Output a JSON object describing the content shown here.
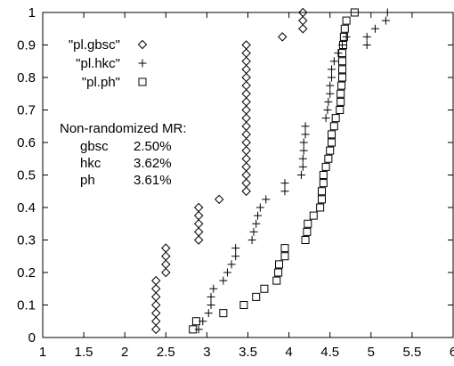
{
  "chart_data": {
    "type": "scatter",
    "title": "",
    "xlabel": "",
    "ylabel": "",
    "xlim": [
      1,
      6
    ],
    "ylim": [
      0,
      1
    ],
    "x_ticks": [
      1,
      1.5,
      2,
      2.5,
      3,
      3.5,
      4,
      4.5,
      5,
      5.5,
      6
    ],
    "x_tick_labels": [
      "1",
      "1.5",
      "2",
      "2.5",
      "3",
      "3.5",
      "4",
      "4.5",
      "5",
      "5.5",
      "6"
    ],
    "y_ticks": [
      0,
      0.1,
      0.2,
      0.3,
      0.4,
      0.5,
      0.6,
      0.7,
      0.8,
      0.9,
      1
    ],
    "y_tick_labels": [
      "0",
      "0.1",
      "0.2",
      "0.3",
      "0.4",
      "0.5",
      "0.6",
      "0.7",
      "0.8",
      "0.9",
      "1"
    ],
    "grid": false,
    "legend_position": "top-left",
    "series": [
      {
        "name": "\"pl.gbsc\"",
        "marker": "diamond",
        "points": [
          [
            2.38,
            0.025
          ],
          [
            2.38,
            0.05
          ],
          [
            2.38,
            0.075
          ],
          [
            2.38,
            0.1
          ],
          [
            2.38,
            0.125
          ],
          [
            2.38,
            0.15
          ],
          [
            2.38,
            0.175
          ],
          [
            2.5,
            0.2
          ],
          [
            2.5,
            0.225
          ],
          [
            2.5,
            0.25
          ],
          [
            2.5,
            0.275
          ],
          [
            2.9,
            0.3
          ],
          [
            2.9,
            0.325
          ],
          [
            2.9,
            0.35
          ],
          [
            2.9,
            0.375
          ],
          [
            2.9,
            0.4
          ],
          [
            3.15,
            0.425
          ],
          [
            3.48,
            0.45
          ],
          [
            3.48,
            0.475
          ],
          [
            3.48,
            0.5
          ],
          [
            3.48,
            0.525
          ],
          [
            3.48,
            0.55
          ],
          [
            3.48,
            0.575
          ],
          [
            3.48,
            0.6
          ],
          [
            3.48,
            0.625
          ],
          [
            3.48,
            0.65
          ],
          [
            3.48,
            0.675
          ],
          [
            3.48,
            0.7
          ],
          [
            3.48,
            0.725
          ],
          [
            3.48,
            0.75
          ],
          [
            3.48,
            0.775
          ],
          [
            3.48,
            0.8
          ],
          [
            3.48,
            0.825
          ],
          [
            3.48,
            0.85
          ],
          [
            3.48,
            0.875
          ],
          [
            3.48,
            0.9
          ],
          [
            3.92,
            0.925
          ],
          [
            4.17,
            0.95
          ],
          [
            4.17,
            0.975
          ],
          [
            4.17,
            1.0
          ]
        ]
      },
      {
        "name": "\"pl.hkc\"",
        "marker": "plus",
        "points": [
          [
            2.9,
            0.025
          ],
          [
            2.95,
            0.05
          ],
          [
            3.02,
            0.075
          ],
          [
            3.05,
            0.1
          ],
          [
            3.05,
            0.125
          ],
          [
            3.08,
            0.15
          ],
          [
            3.2,
            0.175
          ],
          [
            3.25,
            0.2
          ],
          [
            3.3,
            0.225
          ],
          [
            3.35,
            0.25
          ],
          [
            3.35,
            0.275
          ],
          [
            3.55,
            0.3
          ],
          [
            3.57,
            0.325
          ],
          [
            3.6,
            0.35
          ],
          [
            3.62,
            0.375
          ],
          [
            3.65,
            0.4
          ],
          [
            3.72,
            0.425
          ],
          [
            3.95,
            0.45
          ],
          [
            3.95,
            0.475
          ],
          [
            4.15,
            0.5
          ],
          [
            4.17,
            0.525
          ],
          [
            4.17,
            0.55
          ],
          [
            4.18,
            0.575
          ],
          [
            4.18,
            0.6
          ],
          [
            4.2,
            0.625
          ],
          [
            4.2,
            0.65
          ],
          [
            4.45,
            0.675
          ],
          [
            4.47,
            0.7
          ],
          [
            4.48,
            0.725
          ],
          [
            4.5,
            0.75
          ],
          [
            4.5,
            0.775
          ],
          [
            4.52,
            0.8
          ],
          [
            4.52,
            0.825
          ],
          [
            4.55,
            0.85
          ],
          [
            4.6,
            0.875
          ],
          [
            4.65,
            0.9
          ],
          [
            4.7,
            0.925
          ],
          [
            4.95,
            0.9
          ],
          [
            4.95,
            0.925
          ],
          [
            5.05,
            0.95
          ],
          [
            5.18,
            0.975
          ],
          [
            5.2,
            1.0
          ]
        ]
      },
      {
        "name": "\"pl.ph\"",
        "marker": "square",
        "points": [
          [
            2.83,
            0.025
          ],
          [
            2.87,
            0.05
          ],
          [
            3.2,
            0.075
          ],
          [
            3.45,
            0.1
          ],
          [
            3.6,
            0.125
          ],
          [
            3.7,
            0.15
          ],
          [
            3.85,
            0.175
          ],
          [
            3.87,
            0.2
          ],
          [
            3.88,
            0.225
          ],
          [
            3.95,
            0.25
          ],
          [
            3.95,
            0.275
          ],
          [
            4.2,
            0.3
          ],
          [
            4.22,
            0.325
          ],
          [
            4.23,
            0.35
          ],
          [
            4.3,
            0.375
          ],
          [
            4.38,
            0.4
          ],
          [
            4.4,
            0.425
          ],
          [
            4.4,
            0.45
          ],
          [
            4.42,
            0.475
          ],
          [
            4.42,
            0.5
          ],
          [
            4.45,
            0.525
          ],
          [
            4.48,
            0.55
          ],
          [
            4.5,
            0.575
          ],
          [
            4.52,
            0.6
          ],
          [
            4.52,
            0.625
          ],
          [
            4.55,
            0.65
          ],
          [
            4.57,
            0.675
          ],
          [
            4.62,
            0.7
          ],
          [
            4.63,
            0.725
          ],
          [
            4.63,
            0.75
          ],
          [
            4.64,
            0.775
          ],
          [
            4.65,
            0.8
          ],
          [
            4.65,
            0.825
          ],
          [
            4.65,
            0.85
          ],
          [
            4.65,
            0.875
          ],
          [
            4.66,
            0.9
          ],
          [
            4.67,
            0.925
          ],
          [
            4.68,
            0.95
          ],
          [
            4.7,
            0.975
          ],
          [
            4.8,
            1.0
          ]
        ]
      }
    ],
    "annotation": {
      "heading": "Non-randomized MR:",
      "rows": [
        {
          "label": "gbsc",
          "value": "2.50%"
        },
        {
          "label": "hkc",
          "value": "3.62%"
        },
        {
          "label": "ph",
          "value": "3.61%"
        }
      ]
    }
  }
}
